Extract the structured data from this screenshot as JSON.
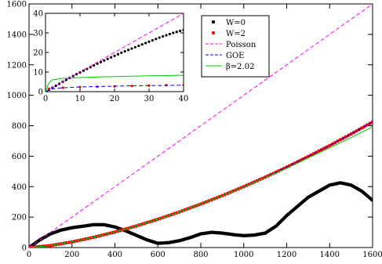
{
  "chart_data": [
    {
      "type": "line",
      "title": "",
      "xlabel": "",
      "ylabel": "",
      "xlim": [
        0,
        1600
      ],
      "ylim": [
        0,
        1600
      ],
      "xticks": [
        0,
        200,
        400,
        600,
        800,
        1000,
        1200,
        1400,
        1600
      ],
      "yticks": [
        0,
        200,
        400,
        600,
        800,
        1000,
        1200,
        1400,
        1600
      ],
      "grid": false,
      "legend_position": "top-right",
      "series": [
        {
          "name": "W=0",
          "style": "dots",
          "color": "#000000",
          "x": [
            0,
            50,
            100,
            150,
            200,
            250,
            300,
            350,
            400,
            450,
            500,
            550,
            600,
            650,
            700,
            750,
            800,
            850,
            900,
            950,
            1000,
            1050,
            1100,
            1150,
            1200,
            1250,
            1300,
            1350,
            1400,
            1450,
            1500,
            1550,
            1600
          ],
          "y": [
            0,
            50,
            90,
            115,
            130,
            140,
            150,
            150,
            135,
            110,
            80,
            50,
            28,
            32,
            45,
            65,
            90,
            100,
            95,
            85,
            78,
            82,
            95,
            140,
            210,
            270,
            330,
            370,
            410,
            425,
            410,
            370,
            310
          ]
        },
        {
          "name": "W=2",
          "style": "dots",
          "color": "#ff0000",
          "x": [
            0,
            100,
            200,
            300,
            400,
            500,
            600,
            700,
            800,
            900,
            1000,
            1100,
            1200,
            1300,
            1400,
            1500,
            1600
          ],
          "y": [
            0,
            13,
            37,
            67,
            102,
            142,
            186,
            234,
            286,
            341,
            400,
            462,
            528,
            598,
            670,
            746,
            825
          ]
        },
        {
          "name": "Poisson",
          "style": "dashed",
          "color": "#ff00ff",
          "x": [
            0,
            1600
          ],
          "y": [
            0,
            1600
          ]
        },
        {
          "name": "GOE",
          "style": "dashed",
          "color": "#0000ff",
          "x": [
            0,
            100,
            200,
            300,
            400,
            500,
            600,
            700,
            800,
            900,
            1000,
            1100,
            1200,
            1300,
            1400,
            1500,
            1600
          ],
          "y": [
            0,
            13,
            37,
            67,
            102,
            142,
            186,
            234,
            286,
            341,
            400,
            462,
            528,
            598,
            670,
            746,
            825
          ]
        },
        {
          "name": "β=2.02",
          "style": "solid",
          "color": "#00cc00",
          "x": [
            0,
            100,
            200,
            300,
            400,
            500,
            600,
            700,
            800,
            900,
            1000,
            1100,
            1200,
            1300,
            1400,
            1500,
            1600
          ],
          "y": [
            0,
            13,
            37,
            67,
            102,
            142,
            186,
            234,
            286,
            341,
            399,
            460,
            522,
            588,
            655,
            722,
            793
          ]
        }
      ]
    },
    {
      "type": "line",
      "title": "",
      "xlabel": "",
      "ylabel": "",
      "xlim": [
        0,
        40
      ],
      "ylim": [
        0,
        40
      ],
      "xticks": [
        0,
        10,
        20,
        30,
        40
      ],
      "yticks": [
        0,
        10,
        20,
        30,
        40
      ],
      "grid": false,
      "series": [
        {
          "name": "W=0",
          "style": "dots",
          "color": "#000000",
          "x": [
            1,
            2,
            3,
            4,
            5,
            6,
            7,
            8,
            9,
            10,
            11,
            12,
            13,
            14,
            15,
            16,
            17,
            18,
            19,
            20,
            21,
            22,
            23,
            24,
            25,
            26,
            27,
            28,
            29,
            30,
            31,
            32,
            33,
            34,
            35,
            36,
            37,
            38,
            39,
            40
          ],
          "y": [
            1,
            2,
            3,
            4,
            5,
            6,
            7,
            8,
            8.9,
            9.8,
            10.7,
            11.6,
            12.5,
            13.4,
            14.3,
            15.1,
            15.9,
            16.7,
            17.5,
            18.3,
            19.1,
            19.9,
            20.6,
            21.3,
            22.0,
            22.7,
            23.4,
            24.1,
            24.8,
            25.5,
            26.2,
            26.9,
            27.6,
            28.2,
            28.8,
            29.4,
            30.0,
            30.5,
            31.0,
            31.4
          ]
        },
        {
          "name": "W=2",
          "style": "dots",
          "color": "#ff0000",
          "x": [
            1,
            5,
            10,
            15,
            20,
            25,
            30,
            35,
            40
          ],
          "y": [
            1.5,
            2.0,
            2.3,
            2.5,
            2.7,
            2.9,
            3.1,
            3.3,
            3.4
          ]
        },
        {
          "name": "Poisson",
          "style": "dashed",
          "color": "#ff00ff",
          "x": [
            0,
            40
          ],
          "y": [
            0,
            40
          ]
        },
        {
          "name": "GOE",
          "style": "dashed",
          "color": "#0000ff",
          "x": [
            0,
            1,
            2,
            5,
            10,
            15,
            20,
            25,
            30,
            35,
            40
          ],
          "y": [
            0,
            0.8,
            1.4,
            2.0,
            2.4,
            2.6,
            2.8,
            3.0,
            3.1,
            3.2,
            3.3
          ]
        },
        {
          "name": "β=2.02",
          "style": "solid",
          "color": "#00cc00",
          "x": [
            0,
            1,
            2,
            5,
            10,
            15,
            20,
            25,
            30,
            35,
            40
          ],
          "y": [
            0,
            4.5,
            6.0,
            6.8,
            7.2,
            7.5,
            7.7,
            7.9,
            8.1,
            8.2,
            8.4
          ]
        }
      ]
    }
  ]
}
